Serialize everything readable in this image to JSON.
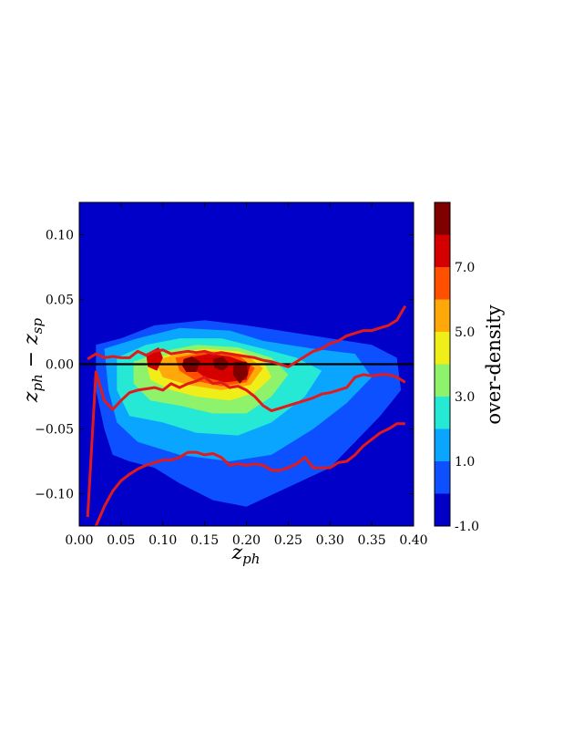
{
  "chart_data": {
    "type": "heatmap",
    "title": "",
    "xlabel": "z_ph",
    "ylabel": "z_ph − z_sp",
    "xlim": [
      0.0,
      0.4
    ],
    "ylim": [
      -0.125,
      0.125
    ],
    "x_ticks": [
      "0.00",
      "0.05",
      "0.10",
      "0.15",
      "0.20",
      "0.25",
      "0.30",
      "0.35",
      "0.40"
    ],
    "y_ticks": [
      "−0.10",
      "−0.05",
      "0.00",
      "0.05",
      "0.10"
    ],
    "colorbar": {
      "label": "over-density",
      "tick_labels": [
        "-1.0",
        "1.0",
        "3.0",
        "5.0",
        "7.0"
      ],
      "levels": [
        -1,
        0,
        1,
        2,
        3,
        4,
        5,
        6,
        7,
        8,
        9
      ],
      "colors": [
        "#0000c8",
        "#0d50ff",
        "#0aa5ff",
        "#25e8d5",
        "#8ef26a",
        "#f0ee18",
        "#ffa80a",
        "#ff5000",
        "#d40000",
        "#800000"
      ]
    },
    "zero_line": 0.0,
    "overdensity_regions": [
      {
        "level": 0,
        "points": [
          [
            0.02,
            0.015
          ],
          [
            0.05,
            0.02
          ],
          [
            0.09,
            0.03
          ],
          [
            0.15,
            0.034
          ],
          [
            0.2,
            0.03
          ],
          [
            0.25,
            0.025
          ],
          [
            0.3,
            0.02
          ],
          [
            0.35,
            0.015
          ],
          [
            0.38,
            0.005
          ],
          [
            0.385,
            -0.02
          ],
          [
            0.36,
            -0.04
          ],
          [
            0.33,
            -0.06
          ],
          [
            0.3,
            -0.08
          ],
          [
            0.25,
            -0.095
          ],
          [
            0.2,
            -0.11
          ],
          [
            0.16,
            -0.105
          ],
          [
            0.12,
            -0.092
          ],
          [
            0.09,
            -0.08
          ],
          [
            0.06,
            -0.075
          ],
          [
            0.04,
            -0.07
          ],
          [
            0.03,
            -0.05
          ],
          [
            0.02,
            -0.02
          ]
        ]
      },
      {
        "level": 1,
        "points": [
          [
            0.03,
            0.012
          ],
          [
            0.07,
            0.02
          ],
          [
            0.12,
            0.028
          ],
          [
            0.18,
            0.026
          ],
          [
            0.22,
            0.018
          ],
          [
            0.28,
            0.012
          ],
          [
            0.33,
            0.008
          ],
          [
            0.35,
            -0.01
          ],
          [
            0.32,
            -0.03
          ],
          [
            0.28,
            -0.05
          ],
          [
            0.23,
            -0.07
          ],
          [
            0.18,
            -0.075
          ],
          [
            0.12,
            -0.07
          ],
          [
            0.07,
            -0.06
          ],
          [
            0.045,
            -0.045
          ],
          [
            0.035,
            -0.02
          ]
        ]
      },
      {
        "level": 2,
        "points": [
          [
            0.045,
            0.005
          ],
          [
            0.08,
            0.015
          ],
          [
            0.12,
            0.02
          ],
          [
            0.17,
            0.02
          ],
          [
            0.22,
            0.012
          ],
          [
            0.26,
            0.005
          ],
          [
            0.29,
            -0.005
          ],
          [
            0.27,
            -0.025
          ],
          [
            0.23,
            -0.045
          ],
          [
            0.19,
            -0.055
          ],
          [
            0.14,
            -0.053
          ],
          [
            0.1,
            -0.045
          ],
          [
            0.06,
            -0.04
          ],
          [
            0.045,
            -0.02
          ]
        ]
      },
      {
        "level": 3,
        "points": [
          [
            0.065,
            0.002
          ],
          [
            0.1,
            0.01
          ],
          [
            0.14,
            0.015
          ],
          [
            0.19,
            0.013
          ],
          [
            0.23,
            0.005
          ],
          [
            0.25,
            -0.008
          ],
          [
            0.23,
            -0.025
          ],
          [
            0.2,
            -0.038
          ],
          [
            0.16,
            -0.038
          ],
          [
            0.12,
            -0.032
          ],
          [
            0.085,
            -0.028
          ],
          [
            0.065,
            -0.015
          ]
        ]
      },
      {
        "level": 4,
        "points": [
          [
            0.08,
            0.002
          ],
          [
            0.11,
            0.008
          ],
          [
            0.15,
            0.012
          ],
          [
            0.19,
            0.01
          ],
          [
            0.22,
            0.003
          ],
          [
            0.23,
            -0.01
          ],
          [
            0.21,
            -0.022
          ],
          [
            0.18,
            -0.028
          ],
          [
            0.14,
            -0.025
          ],
          [
            0.11,
            -0.02
          ],
          [
            0.085,
            -0.012
          ]
        ]
      },
      {
        "level": 5,
        "points": [
          [
            0.09,
            0.003
          ],
          [
            0.12,
            0.008
          ],
          [
            0.16,
            0.01
          ],
          [
            0.2,
            0.007
          ],
          [
            0.22,
            -0.003
          ],
          [
            0.205,
            -0.016
          ],
          [
            0.17,
            -0.02
          ],
          [
            0.13,
            -0.016
          ],
          [
            0.1,
            -0.01
          ]
        ]
      },
      {
        "level": 6,
        "points": [
          [
            0.115,
            0.005
          ],
          [
            0.15,
            0.009
          ],
          [
            0.19,
            0.007
          ],
          [
            0.21,
            -0.003
          ],
          [
            0.2,
            -0.014
          ],
          [
            0.17,
            -0.017
          ],
          [
            0.14,
            -0.013
          ],
          [
            0.12,
            -0.005
          ]
        ]
      },
      {
        "level": 7,
        "points": [
          [
            0.13,
            0.005
          ],
          [
            0.155,
            0.008
          ],
          [
            0.18,
            0.006
          ],
          [
            0.205,
            0.0
          ],
          [
            0.2,
            -0.012
          ],
          [
            0.175,
            -0.014
          ],
          [
            0.15,
            -0.01
          ],
          [
            0.135,
            -0.003
          ]
        ]
      },
      {
        "level": 7,
        "points": [
          [
            0.08,
            0.008
          ],
          [
            0.095,
            0.013
          ],
          [
            0.1,
            0.005
          ],
          [
            0.093,
            -0.005
          ],
          [
            0.082,
            -0.002
          ]
        ]
      },
      {
        "level": 8,
        "points": [
          [
            0.125,
            0.004
          ],
          [
            0.135,
            0.006
          ],
          [
            0.145,
            0.002
          ],
          [
            0.14,
            -0.006
          ],
          [
            0.128,
            -0.006
          ],
          [
            0.123,
            -0.001
          ]
        ]
      },
      {
        "level": 8,
        "points": [
          [
            0.16,
            0.004
          ],
          [
            0.172,
            0.006
          ],
          [
            0.18,
            0.0
          ],
          [
            0.172,
            -0.005
          ],
          [
            0.162,
            -0.003
          ]
        ]
      },
      {
        "level": 8,
        "points": [
          [
            0.185,
            0.002
          ],
          [
            0.2,
            0.002
          ],
          [
            0.202,
            -0.008
          ],
          [
            0.192,
            -0.015
          ],
          [
            0.184,
            -0.008
          ]
        ]
      }
    ],
    "series": [
      {
        "points": [
          [
            0.01,
            -0.118
          ],
          [
            0.02,
            -0.006
          ],
          [
            0.03,
            -0.028
          ],
          [
            0.04,
            -0.035
          ],
          [
            0.05,
            -0.028
          ],
          [
            0.06,
            -0.022
          ],
          [
            0.07,
            -0.02
          ],
          [
            0.08,
            -0.019
          ],
          [
            0.09,
            -0.018
          ],
          [
            0.1,
            -0.02
          ],
          [
            0.11,
            -0.015
          ],
          [
            0.12,
            -0.018
          ],
          [
            0.13,
            -0.015
          ],
          [
            0.14,
            -0.013
          ],
          [
            0.15,
            -0.01
          ],
          [
            0.16,
            -0.015
          ],
          [
            0.17,
            -0.014
          ],
          [
            0.18,
            -0.018
          ],
          [
            0.19,
            -0.017
          ],
          [
            0.2,
            -0.02
          ],
          [
            0.21,
            -0.025
          ],
          [
            0.22,
            -0.032
          ],
          [
            0.23,
            -0.036
          ],
          [
            0.24,
            -0.034
          ],
          [
            0.25,
            -0.032
          ],
          [
            0.26,
            -0.03
          ],
          [
            0.27,
            -0.028
          ],
          [
            0.28,
            -0.026
          ],
          [
            0.29,
            -0.023
          ],
          [
            0.3,
            -0.022
          ],
          [
            0.31,
            -0.02
          ],
          [
            0.32,
            -0.018
          ],
          [
            0.33,
            -0.01
          ],
          [
            0.34,
            -0.008
          ],
          [
            0.35,
            -0.009
          ],
          [
            0.36,
            -0.008
          ],
          [
            0.37,
            -0.008
          ],
          [
            0.38,
            -0.01
          ],
          [
            0.39,
            -0.014
          ]
        ]
      },
      {
        "points": [
          [
            0.01,
            0.004
          ],
          [
            0.02,
            0.008
          ],
          [
            0.03,
            0.005
          ],
          [
            0.04,
            0.006
          ],
          [
            0.05,
            0.005
          ],
          [
            0.06,
            0.005
          ],
          [
            0.07,
            0.01
          ],
          [
            0.08,
            0.007
          ],
          [
            0.09,
            0.01
          ],
          [
            0.1,
            0.011
          ],
          [
            0.11,
            0.008
          ],
          [
            0.12,
            0.009
          ],
          [
            0.13,
            0.01
          ],
          [
            0.14,
            0.009
          ],
          [
            0.15,
            0.01
          ],
          [
            0.16,
            0.008
          ],
          [
            0.17,
            0.009
          ],
          [
            0.18,
            0.008
          ],
          [
            0.19,
            0.007
          ],
          [
            0.2,
            0.006
          ],
          [
            0.21,
            0.005
          ],
          [
            0.22,
            0.003
          ],
          [
            0.23,
            0.002
          ],
          [
            0.24,
            0.0
          ],
          [
            0.25,
            -0.002
          ],
          [
            0.26,
            0.002
          ],
          [
            0.27,
            0.006
          ],
          [
            0.28,
            0.01
          ],
          [
            0.29,
            0.012
          ],
          [
            0.3,
            0.016
          ],
          [
            0.31,
            0.018
          ],
          [
            0.32,
            0.022
          ],
          [
            0.33,
            0.024
          ],
          [
            0.34,
            0.026
          ],
          [
            0.35,
            0.026
          ],
          [
            0.36,
            0.028
          ],
          [
            0.37,
            0.03
          ],
          [
            0.38,
            0.034
          ],
          [
            0.39,
            0.045
          ]
        ]
      },
      {
        "points": [
          [
            0.02,
            -0.125
          ],
          [
            0.03,
            -0.11
          ],
          [
            0.04,
            -0.098
          ],
          [
            0.05,
            -0.09
          ],
          [
            0.06,
            -0.085
          ],
          [
            0.07,
            -0.081
          ],
          [
            0.08,
            -0.078
          ],
          [
            0.09,
            -0.076
          ],
          [
            0.1,
            -0.074
          ],
          [
            0.11,
            -0.074
          ],
          [
            0.12,
            -0.072
          ],
          [
            0.13,
            -0.068
          ],
          [
            0.14,
            -0.068
          ],
          [
            0.15,
            -0.07
          ],
          [
            0.16,
            -0.069
          ],
          [
            0.17,
            -0.072
          ],
          [
            0.18,
            -0.078
          ],
          [
            0.19,
            -0.077
          ],
          [
            0.2,
            -0.078
          ],
          [
            0.21,
            -0.077
          ],
          [
            0.22,
            -0.078
          ],
          [
            0.23,
            -0.082
          ],
          [
            0.24,
            -0.082
          ],
          [
            0.25,
            -0.08
          ],
          [
            0.26,
            -0.077
          ],
          [
            0.27,
            -0.072
          ],
          [
            0.28,
            -0.08
          ],
          [
            0.29,
            -0.08
          ],
          [
            0.3,
            -0.08
          ],
          [
            0.31,
            -0.076
          ],
          [
            0.32,
            -0.075
          ],
          [
            0.33,
            -0.07
          ],
          [
            0.34,
            -0.063
          ],
          [
            0.35,
            -0.058
          ],
          [
            0.36,
            -0.053
          ],
          [
            0.37,
            -0.05
          ],
          [
            0.38,
            -0.046
          ],
          [
            0.39,
            -0.046
          ]
        ]
      }
    ],
    "series_color": "#e31a1c",
    "grid": false,
    "legend": "none"
  }
}
